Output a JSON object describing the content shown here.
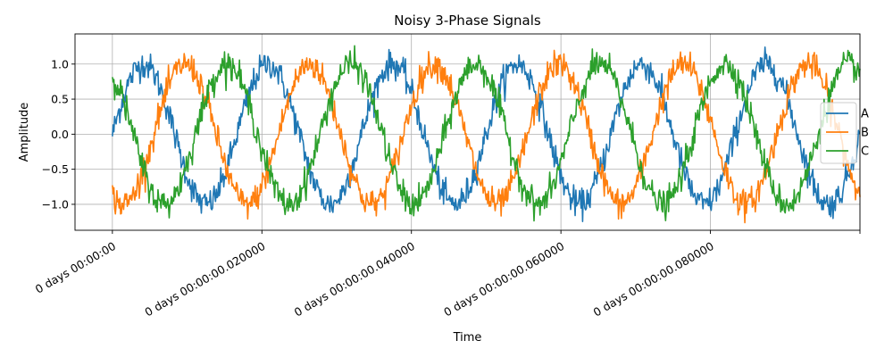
{
  "chart_data": {
    "type": "line",
    "title": "Noisy 3-Phase Signals",
    "xlabel": "Time",
    "ylabel": "Amplitude",
    "x_unit": "seconds",
    "xlim": [
      -0.005,
      0.1
    ],
    "ylim": [
      -1.37,
      1.43
    ],
    "x_ticks": [
      0,
      0.02,
      0.04,
      0.06,
      0.08,
      0.1
    ],
    "x_tick_labels": [
      "0 days 00:00:00",
      "0 days 00:00:00.020000",
      "0 days 00:00:00.040000",
      "0 days 00:00:00.060000",
      "0 days 00:00:00.080000",
      ""
    ],
    "y_ticks": [
      -1.0,
      -0.5,
      0.0,
      0.5,
      1.0
    ],
    "y_tick_labels": [
      "−1.0",
      "−0.5",
      "0.0",
      "0.5",
      "1.0"
    ],
    "grid": true,
    "legend_position": "right",
    "frequency_hz": 60,
    "series": [
      {
        "name": "A",
        "color": "#1f77b4",
        "phase_deg": 0
      },
      {
        "name": "B",
        "color": "#ff7f0e",
        "phase_deg": -120
      },
      {
        "name": "C",
        "color": "#2ca02c",
        "phase_deg": 120
      }
    ],
    "noise_amplitude": 0.1,
    "sample_interval_s": 0.0001
  }
}
